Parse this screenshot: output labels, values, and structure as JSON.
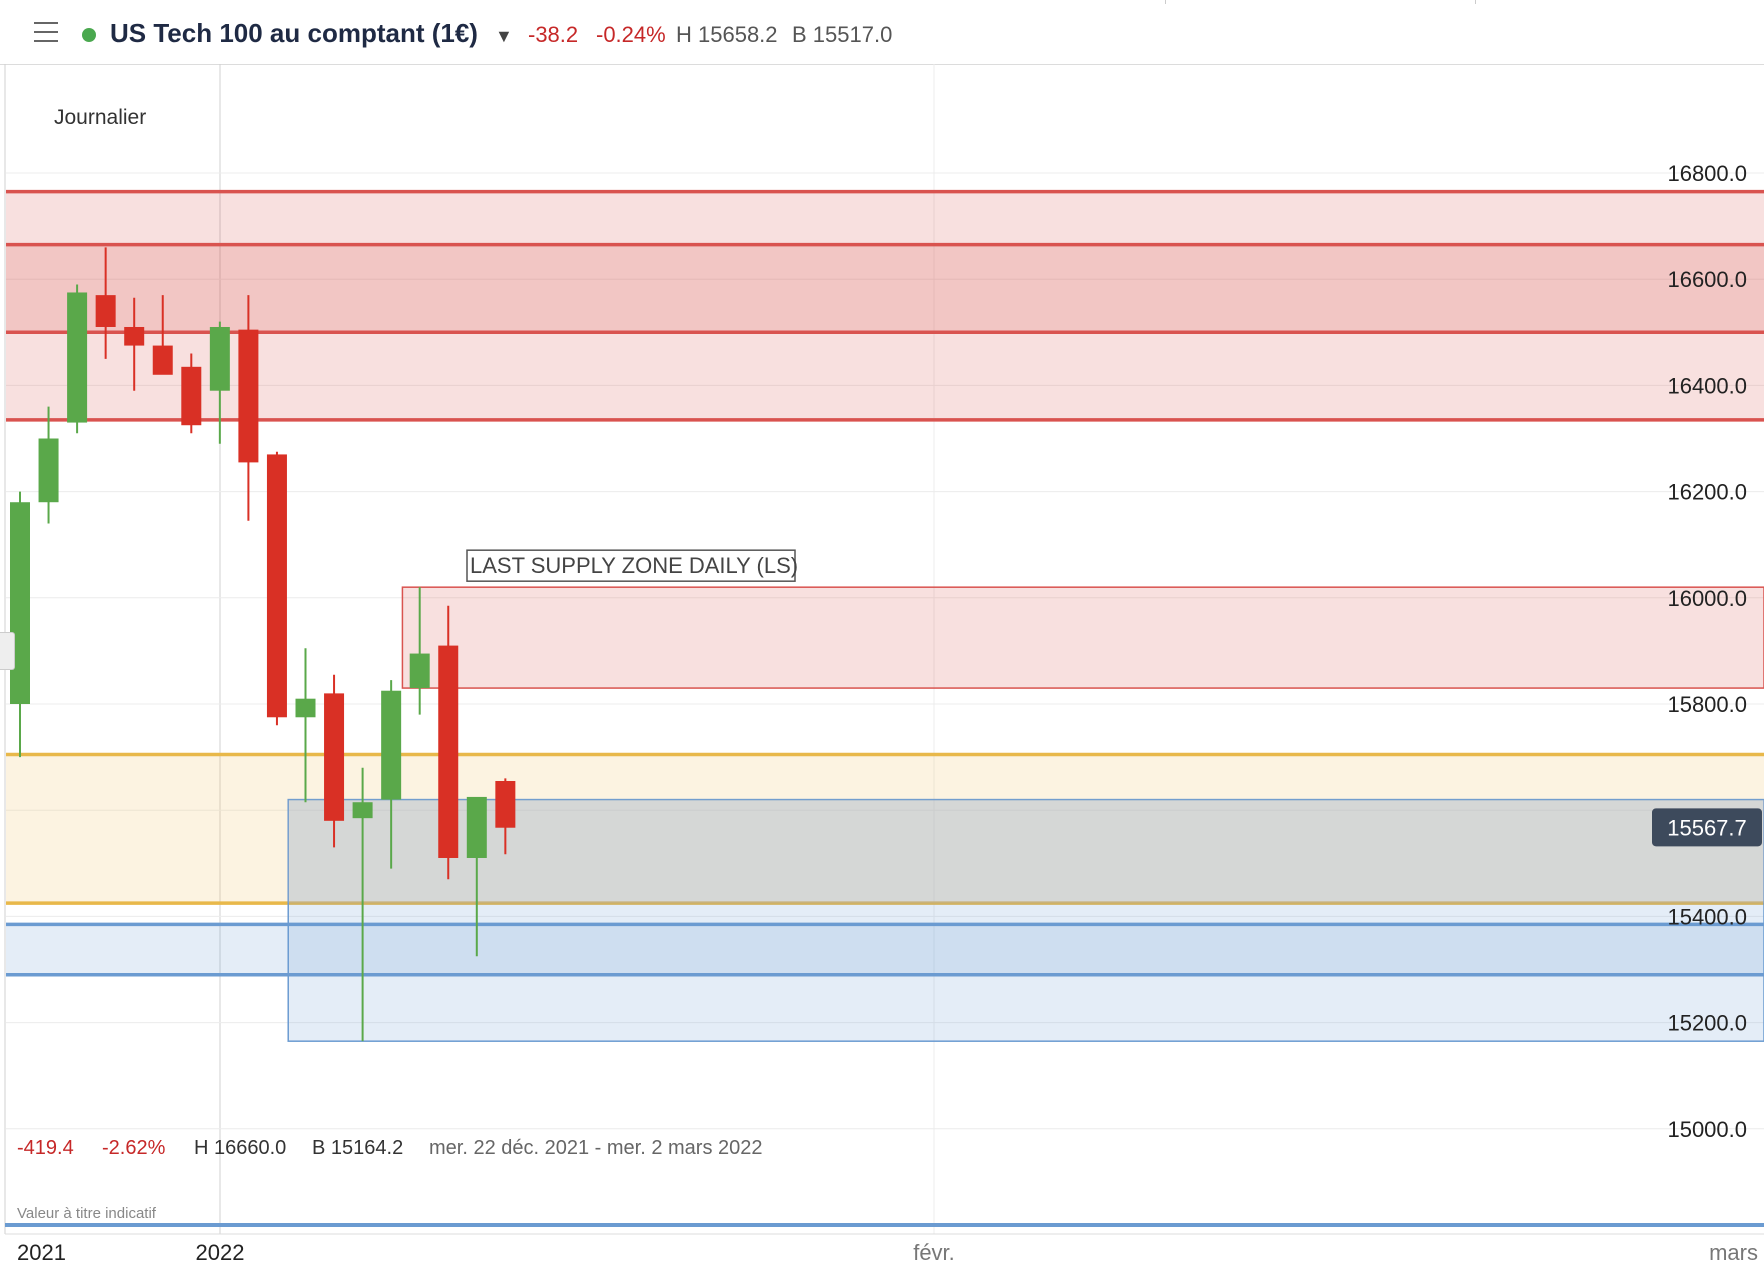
{
  "header": {
    "menu_icon": "hamburger-menu-icon",
    "status_dot_color": "#4aa84f",
    "instrument": "US Tech 100 au comptant (1€)",
    "change": "-38.2",
    "change_pct": "-0.24%",
    "high": "H 15658.2",
    "low": "B 15517.0"
  },
  "colors": {
    "bull": "#5aa84a",
    "bear": "#d93025",
    "supply": "#d9534f",
    "orange": "#e8b84a",
    "blue": "#6b9bd1",
    "price_tag": "#3d4a5c"
  },
  "chart_data": {
    "type": "candlestick",
    "timeframe_label": "Journalier",
    "x_tick_labels": [
      "2021",
      "2022",
      "févr.",
      "mars"
    ],
    "y_ticks": [
      "16800.0",
      "16600.0",
      "16400.0",
      "16200.0",
      "16000.0",
      "15800.0",
      "15400.0",
      "15200.0",
      "15000.0"
    ],
    "y_range": [
      14800,
      17000
    ],
    "current_price": "15567.7",
    "candles": [
      {
        "o": 15800,
        "h": 16200,
        "l": 15700,
        "c": 16180
      },
      {
        "o": 16180,
        "h": 16360,
        "l": 16140,
        "c": 16300
      },
      {
        "o": 16330,
        "h": 16590,
        "l": 16310,
        "c": 16575
      },
      {
        "o": 16570,
        "h": 16660,
        "l": 16450,
        "c": 16510
      },
      {
        "o": 16510,
        "h": 16565,
        "l": 16390,
        "c": 16475
      },
      {
        "o": 16475,
        "h": 16570,
        "l": 16430,
        "c": 16420
      },
      {
        "o": 16435,
        "h": 16460,
        "l": 16310,
        "c": 16325
      },
      {
        "o": 16390,
        "h": 16520,
        "l": 16290,
        "c": 16510
      },
      {
        "o": 16505,
        "h": 16570,
        "l": 16145,
        "c": 16255
      },
      {
        "o": 16270,
        "h": 16275,
        "l": 15760,
        "c": 15775
      },
      {
        "o": 15775,
        "h": 15905,
        "l": 15615,
        "c": 15810
      },
      {
        "o": 15820,
        "h": 15855,
        "l": 15530,
        "c": 15580
      },
      {
        "o": 15585,
        "h": 15680,
        "l": 15165,
        "c": 15615
      },
      {
        "o": 15620,
        "h": 15845,
        "l": 15490,
        "c": 15825
      },
      {
        "o": 15830,
        "h": 16020,
        "l": 15780,
        "c": 15895
      },
      {
        "o": 15910,
        "h": 15985,
        "l": 15470,
        "c": 15510
      },
      {
        "o": 15510,
        "h": 15620,
        "l": 15325,
        "c": 15625
      },
      {
        "o": 15655,
        "h": 15660,
        "l": 15517,
        "c": 15567
      }
    ],
    "zones": [
      {
        "name": "upper-supply-zone",
        "top": 16765,
        "bottom": 16335,
        "color": "supply",
        "start_candle": null
      },
      {
        "name": "inner-supply-zone",
        "top": 16665,
        "bottom": 16500,
        "color": "supply",
        "start_candle": null
      },
      {
        "name": "last-supply-zone-daily",
        "top": 16020,
        "bottom": 15830,
        "color": "supply",
        "start_candle": 13.5
      },
      {
        "name": "orange-zone",
        "top": 15705,
        "bottom": 15425,
        "color": "orange",
        "start_candle": null
      },
      {
        "name": "blue-box-zone",
        "top": 15620,
        "bottom": 15165,
        "color": "blue",
        "start_candle": 9.5
      },
      {
        "name": "blue-band-zone",
        "top": 15385,
        "bottom": 15290,
        "color": "blue",
        "start_candle": null
      }
    ],
    "annotation": "LAST SUPPLY ZONE DAILY (LS)",
    "summary": {
      "change": "-419.4",
      "change_pct": "-2.62%",
      "high": "H 16660.0",
      "low": "B 15164.2",
      "period": "mer. 22 déc. 2021 - mer. 2 mars 2022"
    },
    "disclaimer": "Valeur à titre indicatif"
  }
}
